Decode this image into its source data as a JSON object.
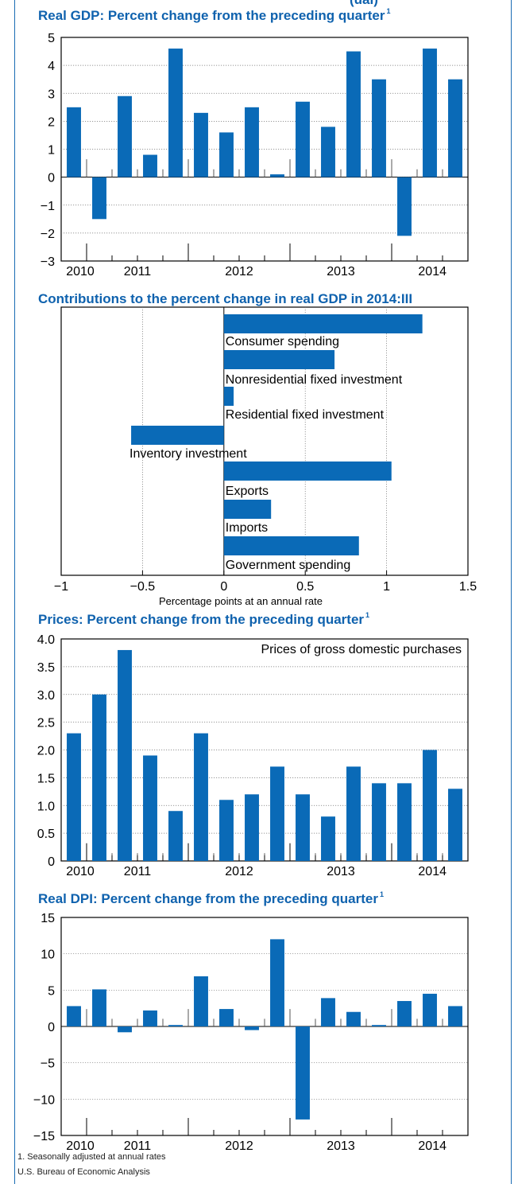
{
  "top_fragment": "(ual)",
  "footnotes": {
    "note1": "1. Seasonally adjusted at annual rates",
    "source": "U.S. Bureau of Economic Analysis"
  },
  "colors": {
    "bar": "#0a6ab7",
    "frame": "#1a6cb4",
    "title": "#0f62ae"
  },
  "chart_data": [
    {
      "type": "bar",
      "title": "Real GDP: Percent change from the preceding quarter",
      "title_note": "1",
      "xlabel": "",
      "ylabel": "",
      "ylim": [
        -3,
        5
      ],
      "yticks": [
        5,
        4,
        3,
        2,
        1,
        0,
        -1,
        -2,
        -3
      ],
      "ytick_labels": [
        "5",
        "4",
        "3",
        "2",
        "1",
        "0",
        "−1",
        "−2",
        "−3"
      ],
      "year_labels": [
        "2010",
        "2011",
        "2012",
        "2013",
        "2014"
      ],
      "grid": true,
      "values": [
        2.5,
        -1.5,
        2.9,
        0.8,
        4.6,
        2.3,
        1.6,
        2.5,
        0.1,
        2.7,
        1.8,
        4.5,
        3.5,
        -2.1,
        4.6,
        3.5
      ]
    },
    {
      "type": "bar",
      "orientation": "horizontal",
      "title": "Contributions to the percent change in real GDP in 2014:III",
      "xlabel": "Percentage points at an annual rate",
      "xlim": [
        -1,
        1.5
      ],
      "xticks": [
        -1,
        -0.5,
        0,
        0.5,
        1,
        1.5
      ],
      "xtick_labels": [
        "−1",
        "−0.5",
        "0",
        "0.5",
        "1",
        "1.5"
      ],
      "grid": true,
      "categories": [
        "Consumer spending",
        "Nonresidential fixed investment",
        "Residential fixed investment",
        "Inventory investment",
        "Exports",
        "Imports",
        "Government spending"
      ],
      "values": [
        1.22,
        0.68,
        0.06,
        -0.57,
        1.03,
        0.29,
        0.83
      ]
    },
    {
      "type": "bar",
      "title": "Prices: Percent change from the preceding quarter",
      "title_note": "1",
      "legend_text": "Prices of gross domestic purchases",
      "ylim": [
        0,
        4.0
      ],
      "yticks": [
        4.0,
        3.5,
        3.0,
        2.5,
        2.0,
        1.5,
        1.0,
        0.5,
        0
      ],
      "ytick_labels": [
        "4.0",
        "3.5",
        "3.0",
        "2.5",
        "2.0",
        "1.5",
        "1.0",
        "0.5",
        "0"
      ],
      "year_labels": [
        "2010",
        "2011",
        "2012",
        "2013",
        "2014"
      ],
      "grid": true,
      "values": [
        2.3,
        3.0,
        3.8,
        1.9,
        0.9,
        2.3,
        1.1,
        1.2,
        1.7,
        1.2,
        0.8,
        1.7,
        1.4,
        1.4,
        2.0,
        1.3
      ]
    },
    {
      "type": "bar",
      "title": "Real DPI: Percent change from the preceding quarter",
      "title_note": "1",
      "ylim": [
        -15,
        15
      ],
      "yticks": [
        15,
        10,
        5,
        0,
        -5,
        -10,
        -15
      ],
      "ytick_labels": [
        "15",
        "10",
        "5",
        "0",
        "−5",
        "−10",
        "−15"
      ],
      "year_labels": [
        "2010",
        "2011",
        "2012",
        "2013",
        "2014"
      ],
      "grid": true,
      "values": [
        2.8,
        5.1,
        -0.8,
        2.2,
        0.2,
        6.9,
        2.4,
        -0.5,
        12.0,
        -12.8,
        3.9,
        2.0,
        0.2,
        3.5,
        4.5,
        2.8
      ]
    }
  ]
}
